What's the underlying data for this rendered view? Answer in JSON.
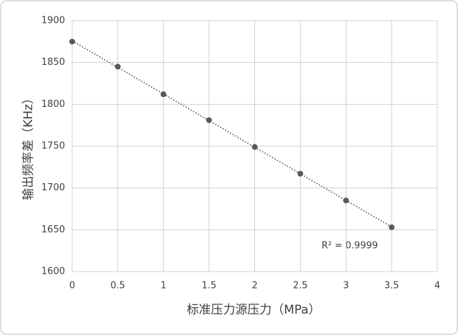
{
  "chart_data": {
    "type": "scatter",
    "x_label": "标准压力源压力（MPa）",
    "y_label": "输出频率差（KHz）",
    "annotation": "R² = 0.9999",
    "series": [
      {
        "color": "#595959",
        "x": [
          0,
          0.5,
          1,
          1.5,
          2,
          2.5,
          3,
          3.5
        ],
        "values": [
          1875,
          1845,
          1812,
          1781,
          1749,
          1717,
          1685,
          1653
        ]
      }
    ],
    "trendline": true,
    "xlim": [
      0,
      4
    ],
    "xticks": [
      0,
      0.5,
      1,
      1.5,
      2,
      2.5,
      3,
      3.5,
      4
    ],
    "ylim": [
      1600,
      1900
    ],
    "yticks": [
      1600,
      1650,
      1700,
      1750,
      1800,
      1850,
      1900
    ],
    "grid": true
  }
}
